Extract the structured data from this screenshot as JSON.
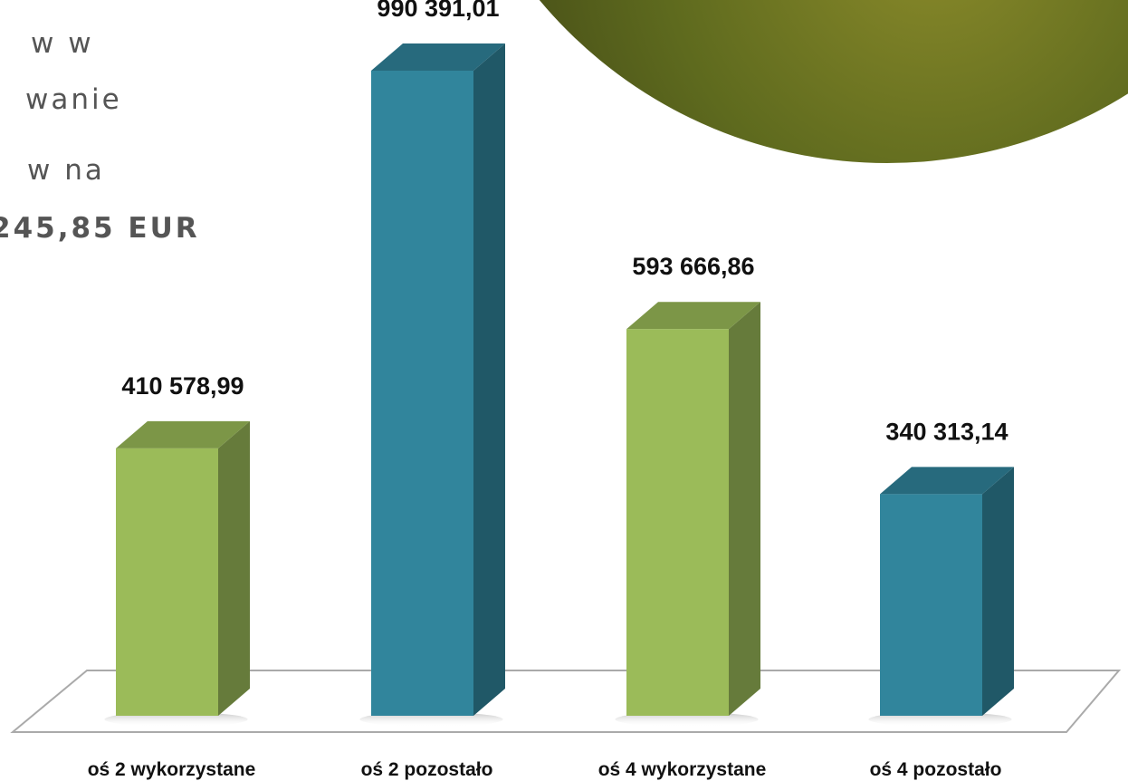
{
  "side_text": [
    "w w",
    "wanie",
    "w na",
    "245,85 EUR"
  ],
  "chart_data": {
    "type": "bar3d",
    "categories": [
      "oś 2 wykorzystane",
      "oś 2 pozostało",
      "oś 4 wykorzystane",
      "oś 4 pozostało"
    ],
    "values": [
      410578.99,
      990391.01,
      593666.86,
      340313.14
    ],
    "value_labels": [
      "410 578,99",
      "990 391,01",
      "593 666,86",
      "340 313,14"
    ],
    "colors": [
      "#9bbb59",
      "#31859c",
      "#9bbb59",
      "#31859c"
    ]
  }
}
